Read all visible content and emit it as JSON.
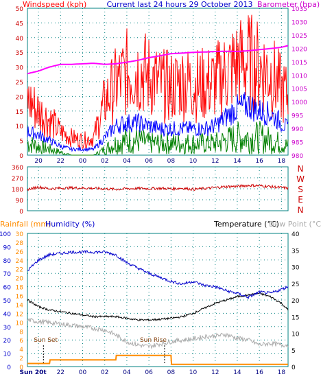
{
  "header": {
    "left_title": "Windspeed (kph)",
    "center_title": "Current last 24 hours 29 October 2013",
    "right_title": "Barometer (hpa)"
  },
  "colors": {
    "windspeed": "#ff0000",
    "avg_wind": "#0000ff",
    "low_wind": "#008000",
    "barometer": "#ff00ff",
    "direction": "#cc0000",
    "rainfall": "#ff8c00",
    "humidity": "#0000cc",
    "temperature": "#000000",
    "dewpoint": "#aaaaaa",
    "grid": "#008080"
  },
  "chart_data": [
    {
      "type": "line",
      "title": "Windspeed (kph) / Barometer (hpa)",
      "x_ticks": [
        "20",
        "22",
        "00",
        "02",
        "04",
        "06",
        "08",
        "10",
        "12",
        "14",
        "16",
        "18"
      ],
      "x_range_hours": [
        19,
        42.6
      ],
      "ylabel_left": "Windspeed (kph)",
      "ylabel_right": "Barometer (hpa)",
      "ylim_left": [
        0,
        50
      ],
      "ylim_right": [
        980,
        1035
      ],
      "left_ticks": [
        0,
        5,
        10,
        15,
        20,
        25,
        30,
        35,
        40,
        45,
        50
      ],
      "right_ticks": [
        980,
        985,
        990,
        995,
        1000,
        1005,
        1010,
        1015,
        1020,
        1025,
        1030,
        1035
      ],
      "grid": true,
      "series": [
        {
          "name": "barometer",
          "axis": "right",
          "x": [
            19,
            20,
            21,
            22,
            23,
            24,
            25,
            26,
            27,
            28,
            29,
            30,
            31,
            32,
            33,
            34,
            35,
            36,
            37,
            38,
            39,
            40,
            41,
            42,
            42.6
          ],
          "values": [
            1010.5,
            1011.5,
            1013,
            1014,
            1014,
            1014.2,
            1014.4,
            1014,
            1014.2,
            1014.8,
            1015.5,
            1016.5,
            1017.2,
            1018,
            1018.2,
            1018.5,
            1018.6,
            1018.8,
            1018.9,
            1018.8,
            1019.1,
            1019.5,
            1019.9,
            1020.4,
            1021
          ]
        },
        {
          "name": "gust",
          "axis": "left",
          "x": [
            19,
            20,
            21,
            22,
            23,
            24,
            25,
            26,
            27,
            28,
            29,
            30,
            31,
            32,
            33,
            34,
            35,
            36,
            37,
            38,
            39,
            40,
            41,
            42,
            42.6
          ],
          "values": [
            19,
            15,
            12,
            8,
            6,
            5,
            6,
            18,
            24,
            28,
            29,
            27,
            24,
            23,
            25,
            24,
            24,
            25,
            28,
            31,
            32,
            30,
            28,
            22,
            20
          ]
        },
        {
          "name": "average",
          "axis": "left",
          "x": [
            19,
            20,
            21,
            22,
            23,
            24,
            25,
            26,
            27,
            28,
            29,
            30,
            31,
            32,
            33,
            34,
            35,
            36,
            37,
            38,
            39,
            40,
            41,
            42,
            42.6
          ],
          "values": [
            8,
            7,
            5,
            3,
            2,
            2,
            2,
            6,
            10,
            11,
            11,
            10,
            9,
            9,
            9,
            9,
            9,
            10,
            13,
            16,
            17,
            15,
            14,
            11,
            9
          ]
        },
        {
          "name": "low",
          "axis": "left",
          "x": [
            19,
            20,
            21,
            22,
            23,
            24,
            25,
            26,
            27,
            28,
            29,
            30,
            31,
            32,
            33,
            34,
            35,
            36,
            37,
            38,
            39,
            40,
            41,
            42,
            42.6
          ],
          "values": [
            4,
            3,
            2,
            1,
            0,
            0,
            0,
            2,
            4,
            5,
            5,
            4,
            4,
            4,
            4,
            4,
            4,
            4,
            5,
            6,
            6,
            6,
            5,
            4,
            3
          ]
        }
      ]
    },
    {
      "type": "line",
      "title": "Wind direction",
      "x_ticks": [
        "20",
        "22",
        "00",
        "02",
        "04",
        "06",
        "08",
        "10",
        "12",
        "14",
        "16",
        "18"
      ],
      "x_range_hours": [
        19,
        42.6
      ],
      "ylim": [
        0,
        360
      ],
      "left_ticks": [
        0,
        90,
        180,
        270,
        360
      ],
      "compass_labels": [
        "N",
        "W",
        "S",
        "E",
        "N"
      ],
      "grid": true,
      "series": [
        {
          "name": "direction",
          "x": [
            19,
            20,
            21,
            22,
            23,
            24,
            25,
            26,
            27,
            28,
            29,
            30,
            31,
            32,
            33,
            34,
            35,
            36,
            37,
            38,
            39,
            40,
            41,
            42,
            42.6
          ],
          "values": [
            175,
            195,
            180,
            185,
            188,
            186,
            184,
            180,
            176,
            180,
            183,
            182,
            184,
            180,
            185,
            176,
            182,
            190,
            198,
            200,
            208,
            205,
            198,
            190,
            185
          ]
        }
      ]
    },
    {
      "type": "line",
      "title": "Rainfall / Humidity / Temperature / Dew Point",
      "legend": [
        "Rainfall (mm)",
        "Humidity (%)",
        "Temperature (°C)",
        "Dew Point (°C)"
      ],
      "x_ticks": [
        "Sun 20t",
        "22",
        "00",
        "02",
        "04",
        "06",
        "08",
        "10",
        "12",
        "14",
        "16",
        "18"
      ],
      "x_range_hours": [
        19,
        42.6
      ],
      "humidity_ticks": [
        0,
        10,
        20,
        30,
        40,
        50,
        60,
        70,
        80,
        90,
        100
      ],
      "rain_ticks": [
        0,
        2,
        4,
        6,
        8,
        10,
        12,
        14,
        16,
        18,
        20,
        22,
        24,
        26,
        28,
        30
      ],
      "temp_ticks": [
        0,
        5,
        10,
        15,
        20,
        25,
        30,
        35,
        40
      ],
      "annotations": [
        {
          "label": "Sun Set",
          "x": 20.2
        },
        {
          "label": "Sun Rise",
          "x": 30.3
        }
      ],
      "grid": true,
      "series": [
        {
          "name": "humidity",
          "x": [
            19,
            20,
            21,
            22,
            23,
            24,
            25,
            26,
            27,
            28,
            29,
            30,
            31,
            32,
            33,
            34,
            35,
            36,
            37,
            38,
            39,
            40,
            41,
            42,
            42.6
          ],
          "values": [
            72,
            80,
            84,
            85,
            86,
            86,
            86,
            86,
            84,
            78,
            74,
            70,
            67,
            64,
            62,
            64,
            61,
            60,
            57,
            55,
            52,
            56,
            55,
            58,
            60
          ]
        },
        {
          "name": "rainfall",
          "x": [
            19,
            21,
            21.05,
            27,
            27.05,
            32,
            32.05,
            42.6
          ],
          "values": [
            0.7,
            0.7,
            1.5,
            1.5,
            2.5,
            2.5,
            0.5,
            0.5
          ]
        },
        {
          "name": "temperature",
          "x": [
            19,
            20,
            21,
            22,
            23,
            24,
            25,
            26,
            27,
            28,
            29,
            30,
            31,
            32,
            33,
            34,
            35,
            36,
            37,
            38,
            39,
            40,
            41,
            42,
            42.6
          ],
          "values": [
            20,
            18,
            17,
            16.5,
            16,
            15.5,
            15,
            15,
            15,
            14.5,
            14,
            14,
            14.2,
            14.5,
            15,
            16,
            17.5,
            19,
            20,
            21,
            21.5,
            22,
            21,
            19,
            17
          ]
        },
        {
          "name": "dewpoint",
          "x": [
            19,
            20,
            21,
            22,
            23,
            24,
            25,
            26,
            27,
            28,
            29,
            30,
            31,
            32,
            33,
            34,
            35,
            36,
            37,
            38,
            39,
            40,
            41,
            42,
            42.6
          ],
          "values": [
            14,
            13.5,
            13.2,
            12.8,
            12.4,
            12,
            11.5,
            11,
            9.5,
            7.5,
            6.5,
            6,
            6.8,
            7.5,
            8,
            8.3,
            9,
            9.2,
            9.6,
            8.5,
            8,
            6.5,
            7,
            6.5,
            6.5
          ]
        }
      ]
    }
  ],
  "panel3_header": {
    "rainfall_label": "Rainfall (mm)",
    "humidity_label": "Humidity (%)",
    "temperature_label": "Temperature (°C)",
    "dewpoint_label": "Dew Point (°C)"
  }
}
